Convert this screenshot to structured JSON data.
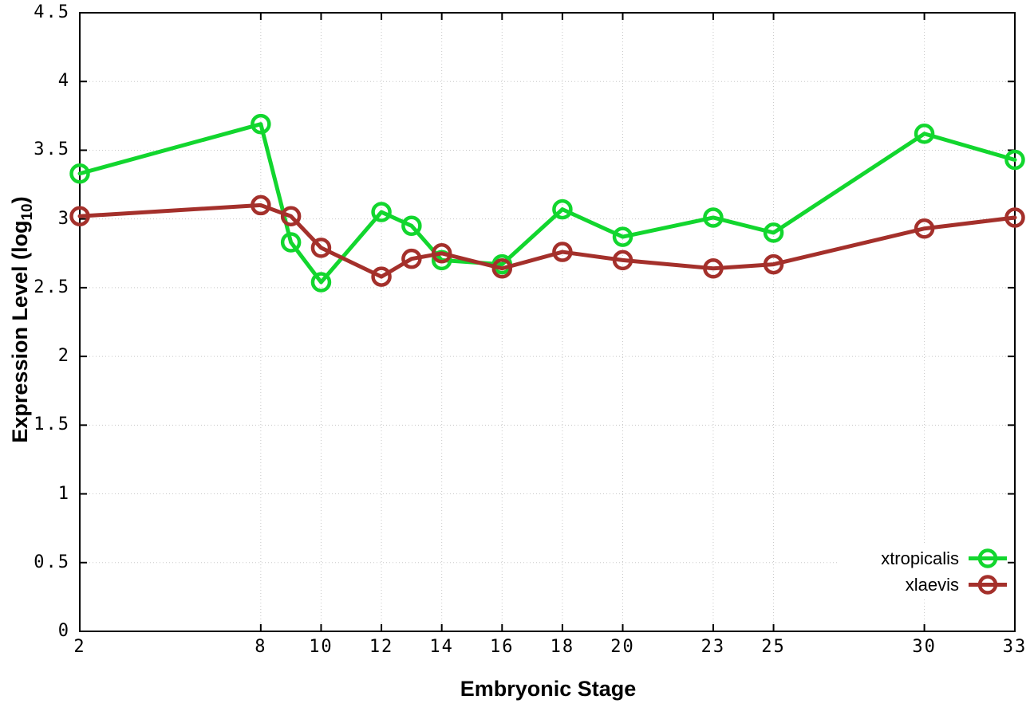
{
  "chart_data": {
    "type": "line",
    "title": "",
    "xlabel": "Embryonic Stage",
    "ylabel": "Expression Level (log10)",
    "ylabel_parts": {
      "prefix": "Expression Level (log",
      "sub": "10",
      "suffix": ")"
    },
    "x": [
      2,
      8,
      9,
      10,
      12,
      13,
      14,
      16,
      18,
      20,
      23,
      25,
      30,
      33
    ],
    "x_ticks": [
      2,
      8,
      10,
      12,
      14,
      16,
      18,
      20,
      23,
      25,
      30,
      33
    ],
    "y_ticks": [
      0,
      0.5,
      1,
      1.5,
      2,
      2.5,
      3,
      3.5,
      4,
      4.5
    ],
    "xlim": [
      2,
      33
    ],
    "ylim": [
      0,
      4.5
    ],
    "grid": true,
    "grid_color": "#c8c8c8",
    "border_color": "#000000",
    "legend_position": "inside-bottom-right",
    "series": [
      {
        "name": "xtropicalis",
        "color": "#12d62e",
        "marker": "open-circle",
        "values": [
          3.33,
          3.69,
          2.83,
          2.54,
          3.05,
          2.95,
          2.7,
          2.67,
          3.07,
          2.87,
          3.01,
          2.9,
          3.62,
          3.43
        ]
      },
      {
        "name": "xlaevis",
        "color": "#a4302b",
        "marker": "open-circle",
        "values": [
          3.02,
          3.1,
          3.02,
          2.79,
          2.58,
          2.71,
          2.75,
          2.64,
          2.76,
          2.7,
          2.64,
          2.67,
          2.93,
          3.01
        ]
      }
    ]
  }
}
